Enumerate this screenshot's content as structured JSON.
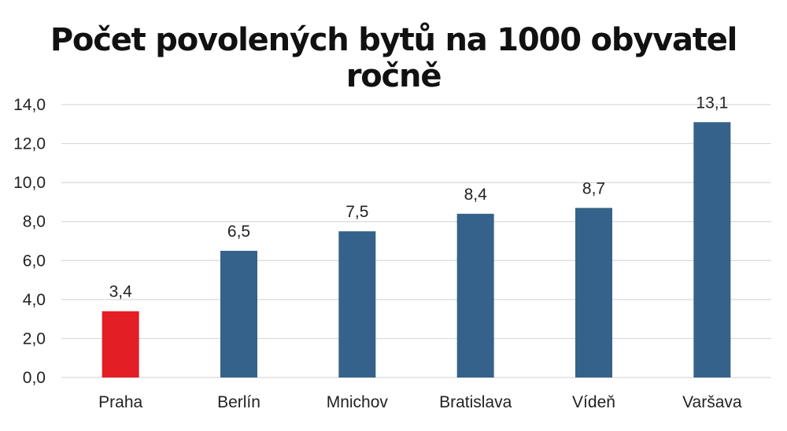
{
  "chart_data": {
    "type": "bar",
    "title": "Počet povolených bytů na 1000 obyvatel ročně",
    "categories": [
      "Praha",
      "Berlín",
      "Mnichov",
      "Bratislava",
      "Vídeň",
      "Varšava"
    ],
    "values": [
      3.4,
      6.5,
      7.5,
      8.4,
      8.7,
      13.1
    ],
    "value_labels": [
      "3,4",
      "6,5",
      "7,5",
      "8,4",
      "8,7",
      "13,1"
    ],
    "yticks": [
      "0,0",
      "2,0",
      "4,0",
      "6,0",
      "8,0",
      "10,0",
      "12,0",
      "14,0"
    ],
    "ylim": [
      0,
      14
    ],
    "grid": true,
    "bar_colors": [
      "#e31e24",
      "#35628a",
      "#35628a",
      "#35628a",
      "#35628a",
      "#35628a"
    ],
    "grid_color": "#d9d9d9",
    "xlabel": "",
    "ylabel": ""
  }
}
